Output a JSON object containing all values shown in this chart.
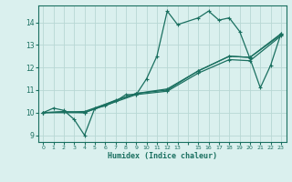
{
  "xlabel": "Humidex (Indice chaleur)",
  "bg_color": "#daf0ee",
  "grid_color": "#b8d8d4",
  "line_color": "#1a7060",
  "xlim": [
    -0.5,
    23.5
  ],
  "ylim": [
    8.7,
    14.75
  ],
  "xticks_pos": [
    0,
    1,
    2,
    3,
    4,
    5,
    6,
    7,
    8,
    9,
    10,
    11,
    12,
    13,
    14,
    15,
    16,
    17,
    18,
    19,
    20,
    21,
    22,
    23
  ],
  "xticks_labels": [
    "0",
    "1",
    "2",
    "3",
    "4",
    "5",
    "6",
    "7",
    "8",
    "9",
    "10",
    "11",
    "12",
    "13",
    "",
    "15",
    "16",
    "17",
    "18",
    "19",
    "20",
    "21",
    "22",
    "23"
  ],
  "yticks": [
    9,
    10,
    11,
    12,
    13,
    14
  ],
  "series": [
    {
      "x": [
        0,
        1,
        2,
        3,
        4,
        5,
        6,
        7,
        8,
        9,
        10,
        11,
        12,
        13,
        15,
        16,
        17,
        18,
        19,
        20,
        21,
        22,
        23
      ],
      "y": [
        10.0,
        10.2,
        10.1,
        9.7,
        9.0,
        10.2,
        10.3,
        10.5,
        10.8,
        10.8,
        11.5,
        12.5,
        14.5,
        13.9,
        14.2,
        14.5,
        14.1,
        14.2,
        13.6,
        12.4,
        11.1,
        12.1,
        13.5
      ]
    },
    {
      "x": [
        0,
        2,
        4,
        7,
        9,
        12,
        15,
        18,
        20,
        23
      ],
      "y": [
        10.0,
        10.05,
        10.0,
        10.55,
        10.85,
        11.0,
        11.85,
        12.5,
        12.45,
        13.45
      ]
    },
    {
      "x": [
        0,
        4,
        9,
        12,
        15,
        18,
        20,
        23
      ],
      "y": [
        10.0,
        10.05,
        10.85,
        11.05,
        11.85,
        12.5,
        12.45,
        13.5
      ]
    },
    {
      "x": [
        0,
        4,
        9,
        12,
        15,
        18,
        20,
        23
      ],
      "y": [
        10.0,
        10.0,
        10.8,
        10.95,
        11.75,
        12.35,
        12.3,
        13.4
      ]
    }
  ]
}
